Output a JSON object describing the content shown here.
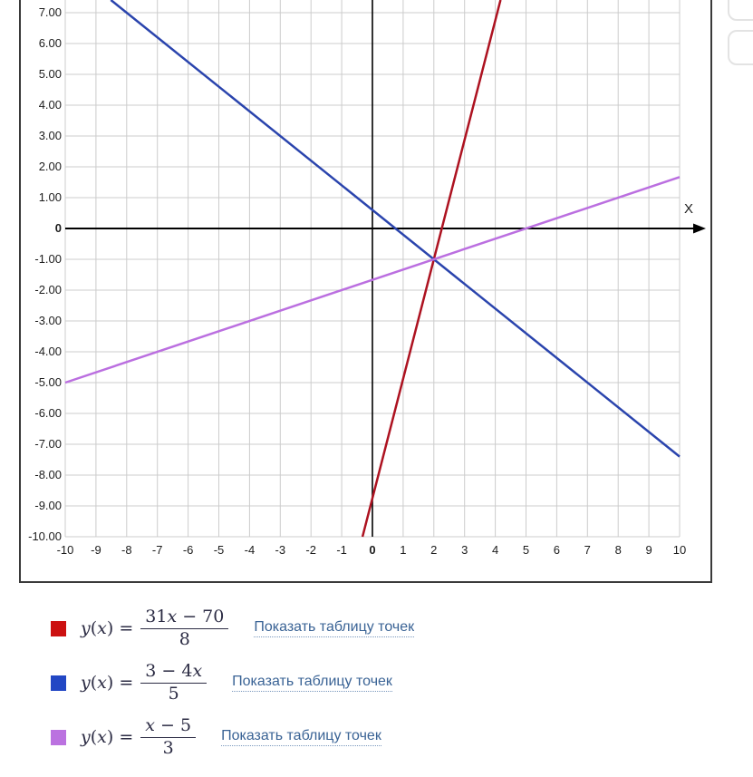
{
  "chart_data": {
    "type": "line",
    "x_axis_label": "X",
    "x_range": [
      -10,
      10
    ],
    "y_range_visible": [
      -10,
      7.41
    ],
    "grid": true,
    "x_ticks": {
      "values": [
        -10,
        -9,
        -8,
        -7,
        -6,
        -5,
        -4,
        -3,
        -2,
        -1,
        0,
        1,
        2,
        3,
        4,
        5,
        6,
        7,
        8,
        9,
        10
      ],
      "labels": [
        "-10",
        "-9",
        "-8",
        "-7",
        "-6",
        "-5",
        "-4",
        "-3",
        "-2",
        "-1",
        "0",
        "1",
        "2",
        "3",
        "4",
        "5",
        "6",
        "7",
        "8",
        "9",
        "10"
      ]
    },
    "y_ticks": {
      "values": [
        7,
        6,
        5,
        4,
        3,
        2,
        1,
        0,
        -1,
        -2,
        -3,
        -4,
        -5,
        -6,
        -7,
        -8,
        -9,
        -10
      ],
      "labels": [
        "7.00",
        "6.00",
        "5.00",
        "4.00",
        "3.00",
        "2.00",
        "1.00",
        "0",
        "-1.00",
        "-2.00",
        "-3.00",
        "-4.00",
        "-5.00",
        "-6.00",
        "-7.00",
        "-8.00",
        "-9.00",
        "-10.00"
      ]
    },
    "series": [
      {
        "name": "y(x) = (31x − 70) / 8",
        "slope": 3.875,
        "intercept": -8.75,
        "color": "#ad1220"
      },
      {
        "name": "y(x) = (3 − 4x) / 5",
        "slope": -0.8,
        "intercept": 0.6,
        "color": "#2a44ad"
      },
      {
        "name": "y(x) = (x − 5) / 3",
        "slope": 0.33333,
        "intercept": -1.66667,
        "color": "#bb6fe0"
      }
    ],
    "axis_color": "#000000",
    "grid_color": "#cccccc"
  },
  "legend": {
    "entries": [
      {
        "swatch_color": "#cc1111",
        "lhs": "y(x) =",
        "numerator": "31x − 70",
        "denominator": "8",
        "link_label": "Показать таблицу точек"
      },
      {
        "swatch_color": "#2247c4",
        "lhs": "y(x) =",
        "numerator": "3 − 4x",
        "denominator": "5",
        "link_label": "Показать таблицу точек"
      },
      {
        "swatch_color": "#bb72e0",
        "lhs": "y(x) =",
        "numerator": "x − 5",
        "denominator": "3",
        "link_label": "Показать таблицу точек"
      }
    ]
  },
  "side_panel": {
    "buttons": [
      {
        "id": "side-button-top"
      },
      {
        "id": "side-button-bottom"
      }
    ]
  }
}
